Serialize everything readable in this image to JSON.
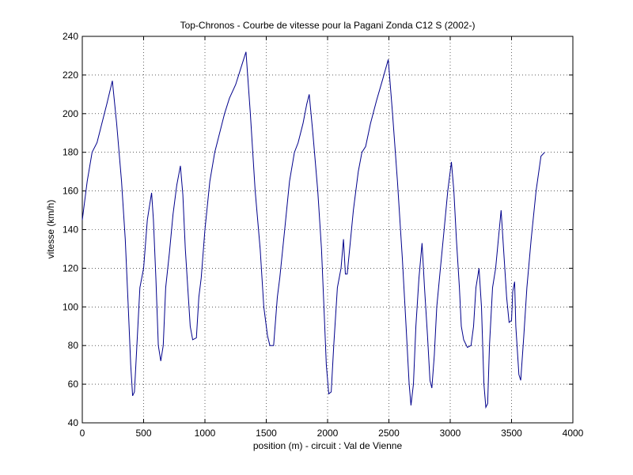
{
  "chart_data": {
    "type": "line",
    "title": "Top-Chronos - Courbe de vitesse pour la Pagani Zonda C12 S (2002-)",
    "xlabel": "position (m) - circuit : Val de Vienne",
    "ylabel": "vitesse (km/h)",
    "xlim": [
      0,
      4000
    ],
    "ylim": [
      40,
      240
    ],
    "xticks": [
      0,
      500,
      1000,
      1500,
      2000,
      2500,
      3000,
      3500,
      4000
    ],
    "yticks": [
      40,
      60,
      80,
      100,
      120,
      140,
      160,
      180,
      200,
      220,
      240
    ],
    "grid": true,
    "line_color": "#00008b",
    "series": [
      {
        "points": [
          [
            0,
            145
          ],
          [
            40,
            165
          ],
          [
            80,
            180
          ],
          [
            120,
            185
          ],
          [
            160,
            195
          ],
          [
            200,
            205
          ],
          [
            245,
            217
          ],
          [
            280,
            195
          ],
          [
            320,
            165
          ],
          [
            350,
            135
          ],
          [
            375,
            100
          ],
          [
            395,
            70
          ],
          [
            410,
            54
          ],
          [
            425,
            56
          ],
          [
            445,
            80
          ],
          [
            470,
            110
          ],
          [
            500,
            120
          ],
          [
            530,
            145
          ],
          [
            555,
            155
          ],
          [
            565,
            159
          ],
          [
            580,
            145
          ],
          [
            600,
            115
          ],
          [
            620,
            80
          ],
          [
            640,
            72
          ],
          [
            660,
            80
          ],
          [
            680,
            110
          ],
          [
            710,
            128
          ],
          [
            740,
            148
          ],
          [
            770,
            163
          ],
          [
            800,
            173
          ],
          [
            820,
            158
          ],
          [
            840,
            130
          ],
          [
            860,
            110
          ],
          [
            880,
            90
          ],
          [
            900,
            83
          ],
          [
            930,
            84
          ],
          [
            950,
            105
          ],
          [
            970,
            115
          ],
          [
            1000,
            140
          ],
          [
            1040,
            165
          ],
          [
            1080,
            180
          ],
          [
            1120,
            190
          ],
          [
            1160,
            200
          ],
          [
            1200,
            208
          ],
          [
            1250,
            215
          ],
          [
            1300,
            225
          ],
          [
            1335,
            232
          ],
          [
            1370,
            200
          ],
          [
            1410,
            160
          ],
          [
            1450,
            130
          ],
          [
            1480,
            100
          ],
          [
            1510,
            85
          ],
          [
            1530,
            80
          ],
          [
            1560,
            80
          ],
          [
            1590,
            105
          ],
          [
            1610,
            115
          ],
          [
            1650,
            140
          ],
          [
            1690,
            165
          ],
          [
            1730,
            180
          ],
          [
            1760,
            185
          ],
          [
            1800,
            195
          ],
          [
            1830,
            205
          ],
          [
            1850,
            210
          ],
          [
            1880,
            190
          ],
          [
            1920,
            160
          ],
          [
            1950,
            130
          ],
          [
            1970,
            100
          ],
          [
            1990,
            70
          ],
          [
            2010,
            55
          ],
          [
            2030,
            56
          ],
          [
            2050,
            80
          ],
          [
            2080,
            110
          ],
          [
            2110,
            120
          ],
          [
            2130,
            135
          ],
          [
            2145,
            117
          ],
          [
            2160,
            117
          ],
          [
            2180,
            130
          ],
          [
            2210,
            150
          ],
          [
            2250,
            170
          ],
          [
            2280,
            180
          ],
          [
            2310,
            183
          ],
          [
            2350,
            195
          ],
          [
            2400,
            207
          ],
          [
            2450,
            218
          ],
          [
            2495,
            228
          ],
          [
            2530,
            200
          ],
          [
            2570,
            165
          ],
          [
            2610,
            125
          ],
          [
            2640,
            90
          ],
          [
            2665,
            60
          ],
          [
            2680,
            49
          ],
          [
            2700,
            60
          ],
          [
            2720,
            90
          ],
          [
            2745,
            115
          ],
          [
            2770,
            133
          ],
          [
            2790,
            110
          ],
          [
            2815,
            85
          ],
          [
            2835,
            62
          ],
          [
            2850,
            58
          ],
          [
            2870,
            75
          ],
          [
            2890,
            100
          ],
          [
            2920,
            120
          ],
          [
            2950,
            140
          ],
          [
            2980,
            160
          ],
          [
            3010,
            175
          ],
          [
            3030,
            160
          ],
          [
            3050,
            135
          ],
          [
            3075,
            110
          ],
          [
            3090,
            90
          ],
          [
            3110,
            83
          ],
          [
            3140,
            79
          ],
          [
            3170,
            80
          ],
          [
            3190,
            90
          ],
          [
            3210,
            110
          ],
          [
            3235,
            120
          ],
          [
            3255,
            100
          ],
          [
            3275,
            60
          ],
          [
            3290,
            48
          ],
          [
            3305,
            50
          ],
          [
            3320,
            80
          ],
          [
            3345,
            110
          ],
          [
            3370,
            120
          ],
          [
            3400,
            140
          ],
          [
            3415,
            150
          ],
          [
            3440,
            125
          ],
          [
            3460,
            105
          ],
          [
            3480,
            92
          ],
          [
            3500,
            93
          ],
          [
            3510,
            108
          ],
          [
            3525,
            113
          ],
          [
            3535,
            90
          ],
          [
            3560,
            65
          ],
          [
            3575,
            62
          ],
          [
            3600,
            85
          ],
          [
            3625,
            110
          ],
          [
            3660,
            135
          ],
          [
            3700,
            160
          ],
          [
            3740,
            178
          ],
          [
            3770,
            180
          ]
        ]
      }
    ]
  }
}
